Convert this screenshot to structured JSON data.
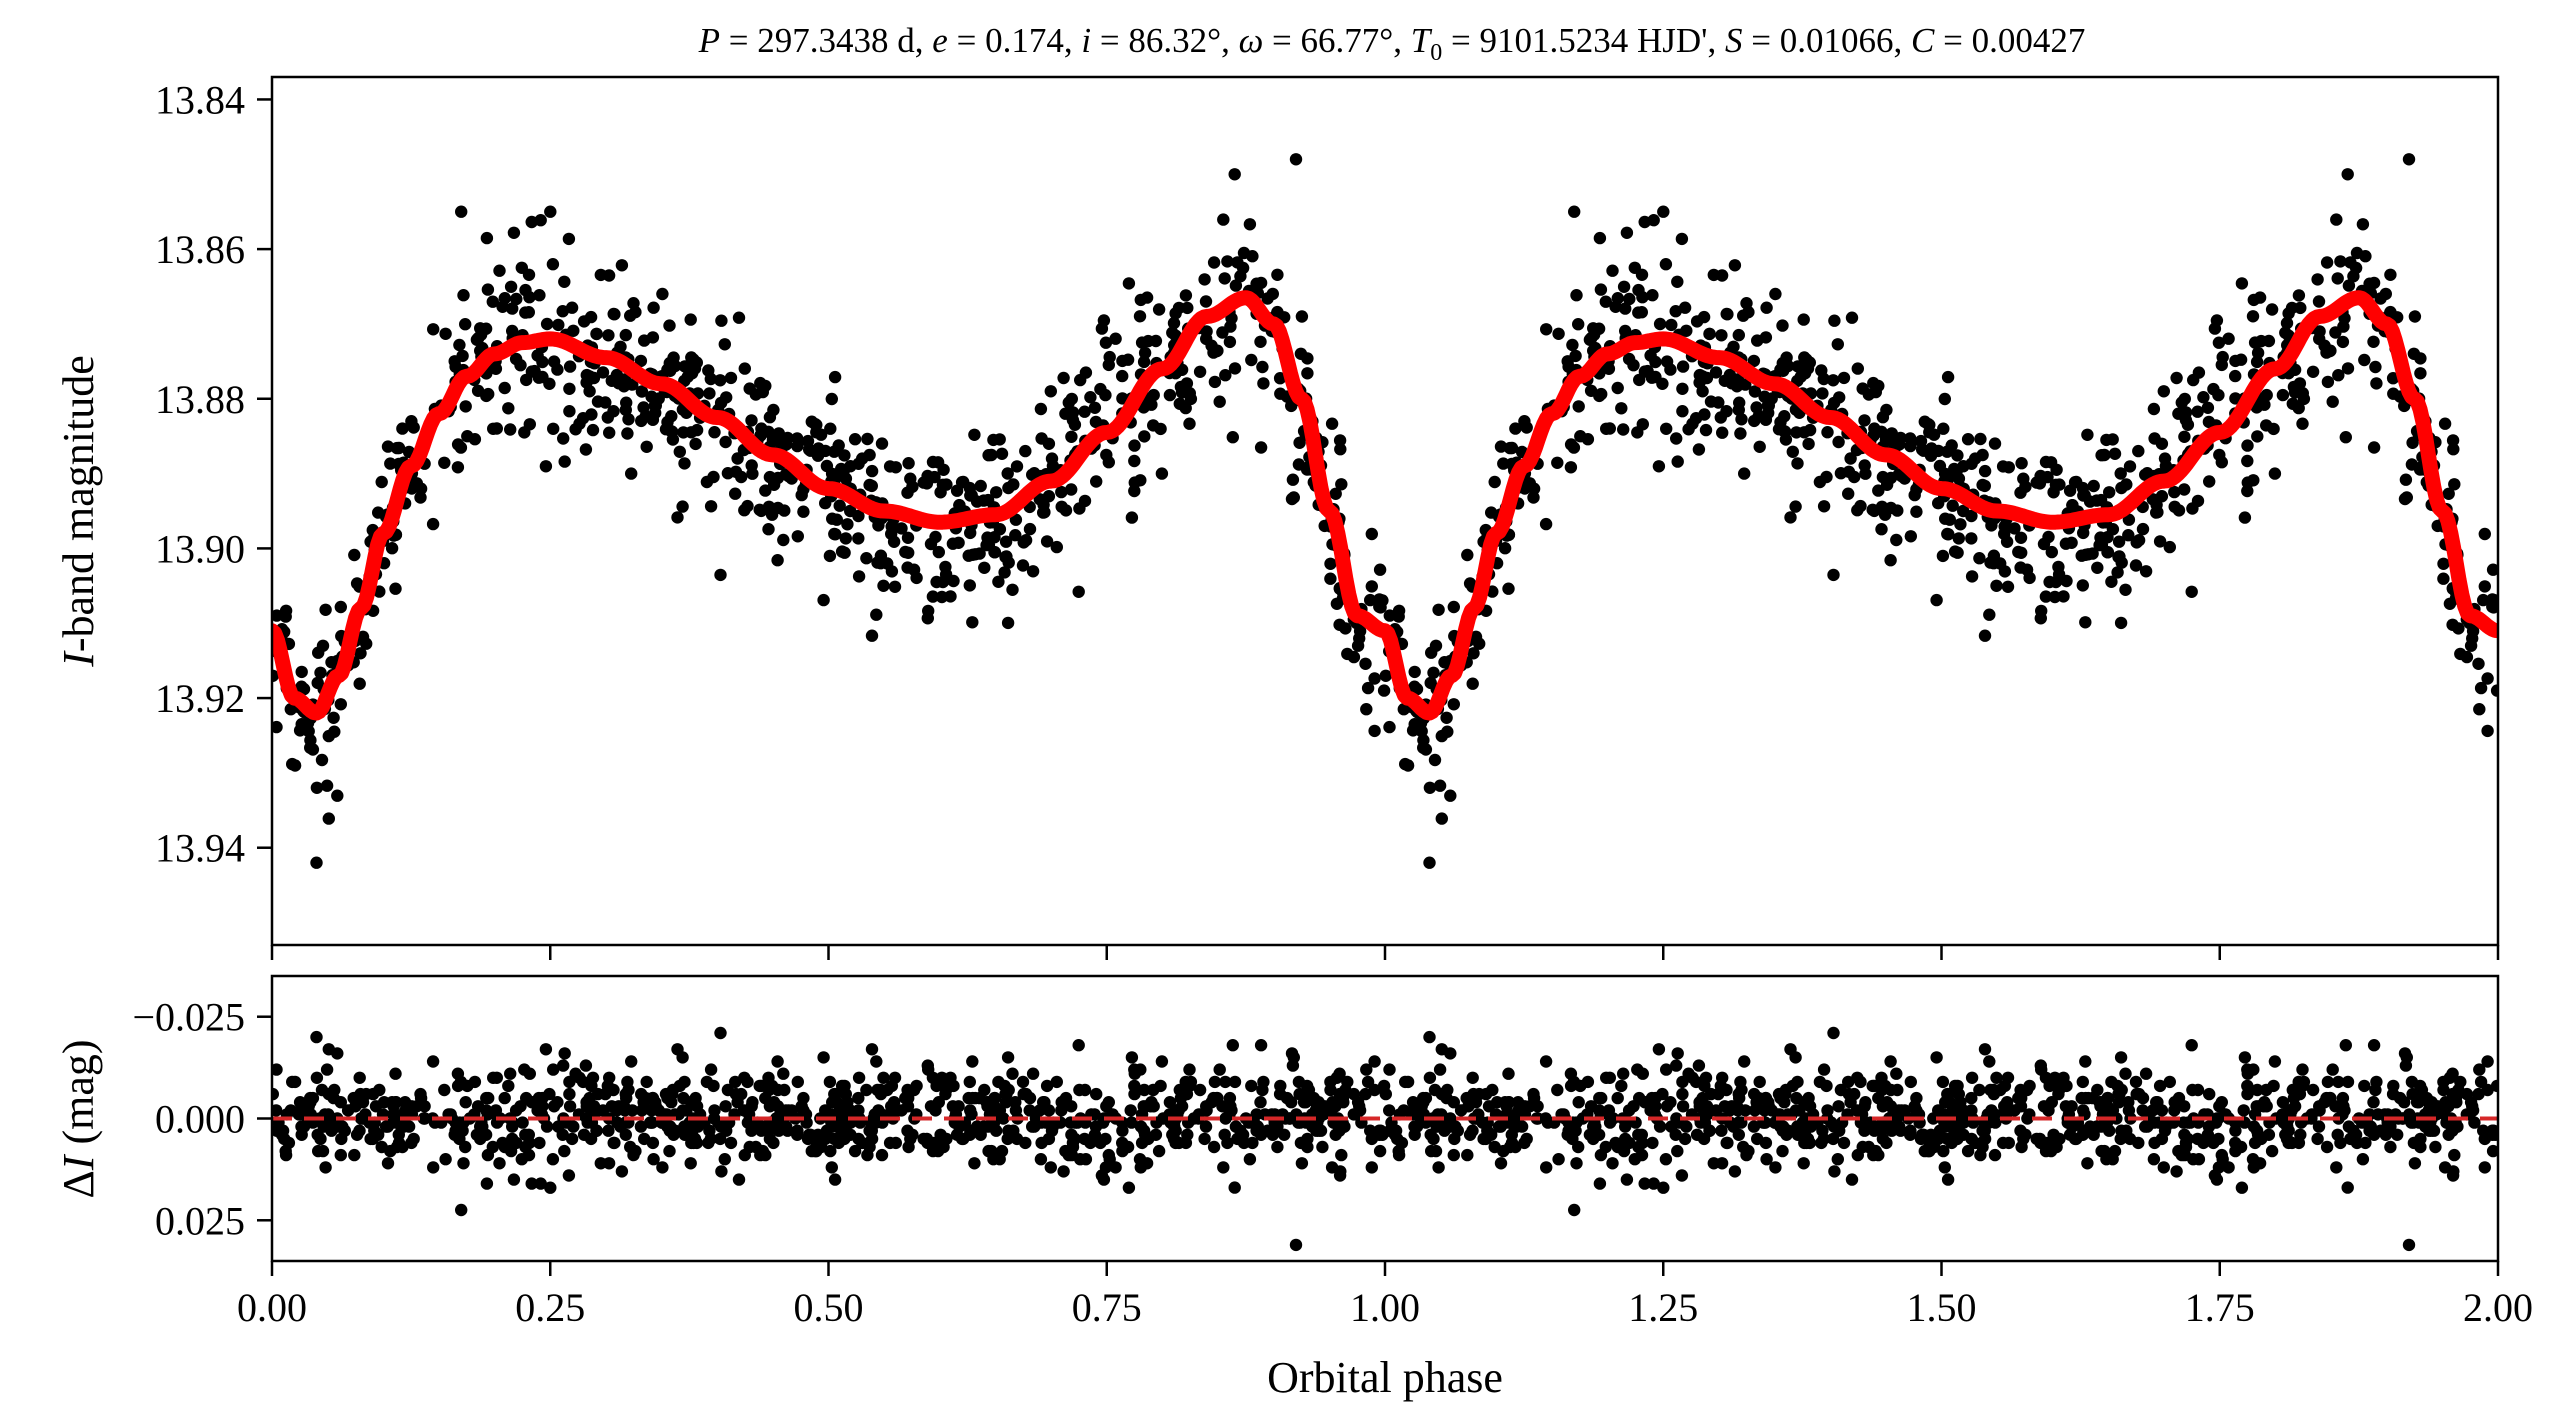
{
  "chart_data": [
    {
      "panel": "top",
      "type": "scatter",
      "title": "P = 297.3438 d, e = 0.174, i = 86.32°, ω = 66.77°, T0 = 9101.5234 HJD', S = 0.01066, C = 0.00427",
      "title_parts": {
        "P_sym": "P",
        "P_val": " = 297.3438 d, ",
        "e_sym": "e",
        "e_val": " = 0.174, ",
        "i_sym": "i",
        "i_val": " = 86.32°, ",
        "w_sym": "ω",
        "w_val": " = 66.77°, ",
        "T_sym": "T",
        "T_sub": "0",
        "T_val": " = 9101.5234 HJD', ",
        "S_sym": "S",
        "S_val": " = 0.01066, ",
        "C_sym": "C",
        "C_val": " = 0.00427"
      },
      "ylabel_italic": "I",
      "ylabel_rest": "-band magnitude",
      "xlim": [
        0.0,
        2.0
      ],
      "ylim": [
        13.953,
        13.837
      ],
      "y_inverted": true,
      "yticks": [
        13.84,
        13.86,
        13.88,
        13.9,
        13.92,
        13.94
      ],
      "ytick_labels": [
        "13.84",
        "13.86",
        "13.88",
        "13.90",
        "13.92",
        "13.94"
      ],
      "xticks": [
        0.0,
        0.25,
        0.5,
        0.75,
        1.0,
        1.25,
        1.5,
        1.75,
        2.0
      ],
      "points_color": "#000000",
      "n_points_per_cycle": 900,
      "model": {
        "name": "eclipsing/ellipsoidal model",
        "color": "#ff0000",
        "keypoints": [
          [
            0.0,
            13.911
          ],
          [
            0.02,
            13.92
          ],
          [
            0.04,
            13.922
          ],
          [
            0.06,
            13.917
          ],
          [
            0.08,
            13.908
          ],
          [
            0.1,
            13.898
          ],
          [
            0.125,
            13.889
          ],
          [
            0.15,
            13.882
          ],
          [
            0.175,
            13.877
          ],
          [
            0.2,
            13.874
          ],
          [
            0.225,
            13.8725
          ],
          [
            0.25,
            13.872
          ],
          [
            0.3,
            13.8745
          ],
          [
            0.35,
            13.878
          ],
          [
            0.4,
            13.8825
          ],
          [
            0.45,
            13.8875
          ],
          [
            0.5,
            13.892
          ],
          [
            0.55,
            13.895
          ],
          [
            0.6,
            13.8965
          ],
          [
            0.65,
            13.8955
          ],
          [
            0.7,
            13.891
          ],
          [
            0.75,
            13.8845
          ],
          [
            0.8,
            13.876
          ],
          [
            0.84,
            13.869
          ],
          [
            0.875,
            13.8665
          ],
          [
            0.9,
            13.87
          ],
          [
            0.925,
            13.88
          ],
          [
            0.95,
            13.895
          ],
          [
            0.975,
            13.909
          ],
          [
            1.0,
            13.911
          ]
        ]
      },
      "scatter_sigma": 0.0062,
      "outliers": [
        [
          0.04,
          13.942
        ],
        [
          0.92,
          13.848
        ],
        [
          0.865,
          13.85
        ],
        [
          0.17,
          13.855
        ],
        [
          0.25,
          13.855
        ]
      ]
    },
    {
      "panel": "bottom",
      "type": "scatter",
      "title": "",
      "xlabel": "Orbital phase",
      "ylabel_pre": "Δ",
      "ylabel_italic": "I",
      "ylabel_rest": " (mag)",
      "xlim": [
        0.0,
        2.0
      ],
      "ylim": [
        0.035,
        -0.035
      ],
      "y_inverted": true,
      "yticks": [
        -0.025,
        0.0,
        0.025
      ],
      "ytick_labels": [
        "−0.025",
        "0.000",
        "0.025"
      ],
      "xticks": [
        0.0,
        0.25,
        0.5,
        0.75,
        1.0,
        1.25,
        1.5,
        1.75,
        2.0
      ],
      "xtick_labels": [
        "0.00",
        "0.25",
        "0.50",
        "0.75",
        "1.00",
        "1.25",
        "1.50",
        "1.75",
        "2.00"
      ],
      "zero_line": {
        "y": 0.0,
        "color": "#d62728",
        "style": "dashed"
      },
      "points_color": "#000000",
      "residual_sigma": 0.0062
    }
  ]
}
